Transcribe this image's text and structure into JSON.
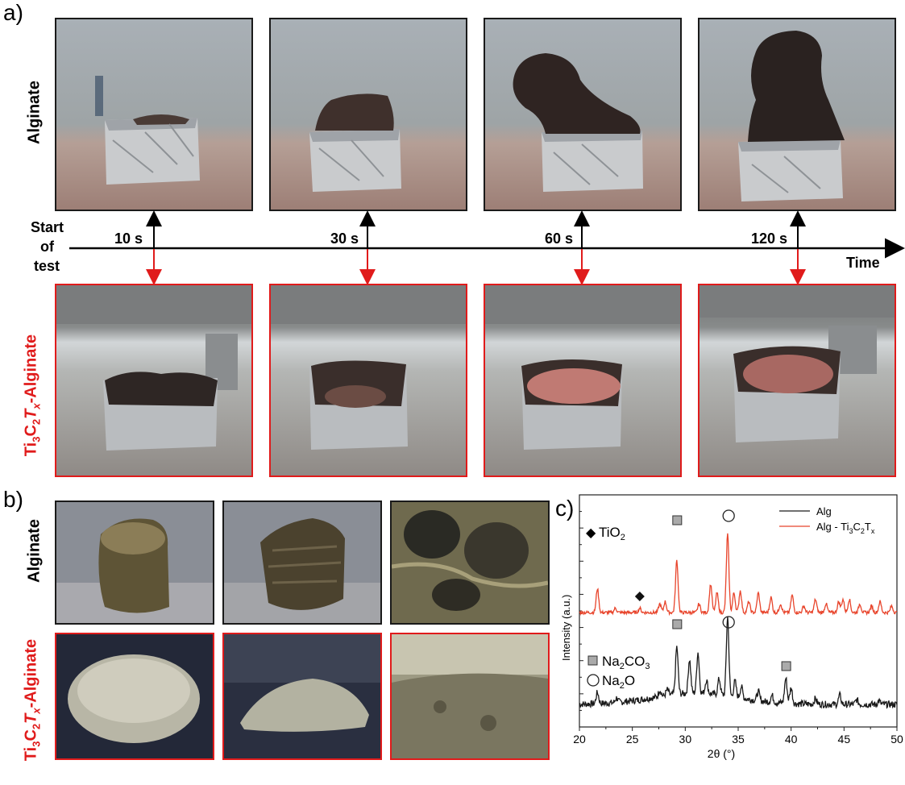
{
  "panel_a": {
    "letter": "a)",
    "row_top_label": "Alginate",
    "row_bottom_label": {
      "p1": "Ti",
      "s1": "3",
      "p2": "C",
      "s2": "2",
      "p3": "T",
      "s3": "x",
      "p4": "-Alginate"
    },
    "timeline": {
      "start_label_line1": "Start",
      "start_label_line2": "of",
      "start_label_line3": "test",
      "axis_label": "Time",
      "ticks": [
        "10 s",
        "30 s",
        "60 s",
        "120 s"
      ]
    },
    "top_photos": [
      "alginate-10s",
      "alginate-30s",
      "alginate-60s",
      "alginate-120s"
    ],
    "bottom_photos": [
      "mxene-10s",
      "mxene-30s",
      "mxene-60s",
      "mxene-120s"
    ]
  },
  "panel_b": {
    "letter": "b)",
    "row_top_label": "Alginate",
    "row_bottom_label": {
      "p1": "Ti",
      "s1": "3",
      "p2": "C",
      "s2": "2",
      "p3": "T",
      "s3": "x",
      "p4": "-Alginate"
    }
  },
  "colors": {
    "alg": "#1a1a1a",
    "mxene": "#e8452c",
    "frame_red": "#e01b1b"
  },
  "chart_data": {
    "type": "line",
    "panel_letter": "c)",
    "xlabel": "2θ (°)",
    "ylabel": "Intensity (a.u.)",
    "xlim": [
      20,
      50
    ],
    "xticks": [
      20,
      25,
      30,
      35,
      40,
      45,
      50
    ],
    "legend": {
      "placement": "top-right"
    },
    "series": [
      {
        "name": "Alg",
        "color": "#1a1a1a",
        "peaks": [
          [
            21.7,
            10
          ],
          [
            23.5,
            4
          ],
          [
            27.6,
            6
          ],
          [
            28.3,
            5
          ],
          [
            29.2,
            42
          ],
          [
            30.4,
            30
          ],
          [
            31.2,
            36
          ],
          [
            32.0,
            12
          ],
          [
            33.2,
            14
          ],
          [
            34.0,
            70
          ],
          [
            34.7,
            14
          ],
          [
            35.3,
            10
          ],
          [
            36.9,
            8
          ],
          [
            38.2,
            6
          ],
          [
            39.5,
            22
          ],
          [
            40.0,
            14
          ],
          [
            42.3,
            5
          ],
          [
            44.6,
            8
          ],
          [
            46.2,
            4
          ],
          [
            48.3,
            3
          ]
        ]
      },
      {
        "name": "Alg - Ti3C2Tx",
        "color": "#e8452c",
        "peaks": [
          [
            21.7,
            22
          ],
          [
            23.4,
            4
          ],
          [
            25.7,
            4
          ],
          [
            27.6,
            8
          ],
          [
            28.1,
            10
          ],
          [
            29.2,
            48
          ],
          [
            31.3,
            8
          ],
          [
            32.4,
            26
          ],
          [
            33.0,
            18
          ],
          [
            34.0,
            72
          ],
          [
            34.6,
            18
          ],
          [
            35.2,
            20
          ],
          [
            36.0,
            10
          ],
          [
            36.9,
            18
          ],
          [
            38.1,
            14
          ],
          [
            39.0,
            8
          ],
          [
            40.1,
            16
          ],
          [
            41.2,
            6
          ],
          [
            42.3,
            12
          ],
          [
            43.3,
            8
          ],
          [
            44.5,
            10
          ],
          [
            44.9,
            12
          ],
          [
            45.5,
            12
          ],
          [
            46.5,
            8
          ],
          [
            47.6,
            6
          ],
          [
            48.4,
            10
          ],
          [
            49.5,
            6
          ]
        ]
      }
    ],
    "legend_entries": {
      "alg": "Alg",
      "mxene_prefix": "Alg - Ti",
      "mxene_s1": "3",
      "mxene_c": "C",
      "mxene_s2": "2",
      "mxene_t": "T",
      "mxene_s3": "x"
    },
    "annotations": {
      "tio2": {
        "symbol": "◆",
        "text": "TiO",
        "sub": "2"
      },
      "na2co3": {
        "symbol": "■",
        "text_a": "Na",
        "sub_a": "2",
        "text_b": "CO",
        "sub_b": "3"
      },
      "na2o": {
        "symbol": "○",
        "text": "Na",
        "sub": "2",
        "text2": "O"
      }
    }
  }
}
